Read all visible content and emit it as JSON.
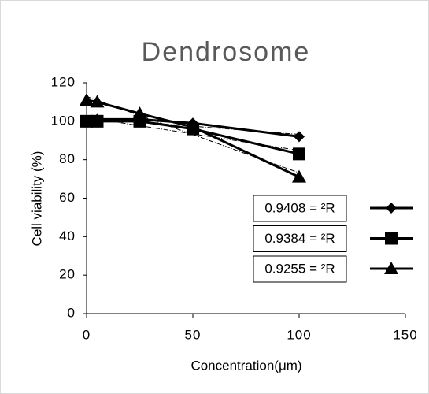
{
  "chart_data": {
    "type": "line",
    "title": "Dendrosome",
    "x_label": "Concentration(μm)",
    "y_label": "Cell viability (%)",
    "xlim": [
      0,
      150
    ],
    "xticks": [
      0,
      50,
      100,
      150
    ],
    "ylim": [
      0,
      120
    ],
    "yticks": [
      0,
      20,
      40,
      60,
      80,
      100,
      120
    ],
    "x": [
      0,
      5,
      25,
      50,
      100
    ],
    "series": [
      {
        "name": "0.9408 = ²R",
        "color": "#000000",
        "marker": "diamond",
        "values": [
          100,
          101,
          101,
          99,
          92
        ]
      },
      {
        "name": "0.9384 = ²R",
        "color": "#000000",
        "marker": "square",
        "values": [
          100,
          100,
          100,
          96,
          83
        ]
      },
      {
        "name": "0.9255 = ²R",
        "color": "#000000",
        "marker": "triangle",
        "values": [
          111,
          110,
          104,
          97,
          71
        ]
      }
    ],
    "trendline": "linear"
  }
}
